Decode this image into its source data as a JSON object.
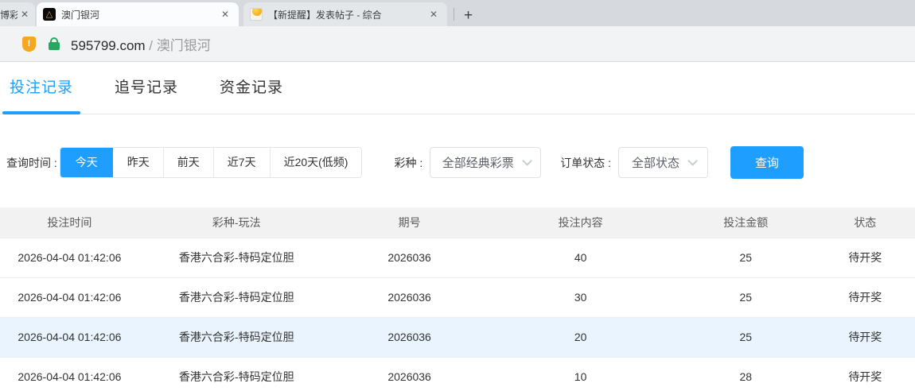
{
  "browser": {
    "tab_partial": {
      "title": "博彩"
    },
    "tab_active": {
      "title": "澳门银河"
    },
    "tab_forum": {
      "title": "【新提醒】发表帖子 - 综合"
    },
    "close_glyph": "✕",
    "new_tab_glyph": "+",
    "favicon_galaxy_glyph": "△",
    "shield_glyph": "!",
    "address": {
      "domain": "595799.com",
      "separator": " / ",
      "site": "澳门银河"
    }
  },
  "records_nav": {
    "tabs": [
      {
        "label": "投注记录",
        "active": true
      },
      {
        "label": "追号记录",
        "active": false
      },
      {
        "label": "资金记录",
        "active": false
      }
    ]
  },
  "filters": {
    "time_label": "查询时间 :",
    "time_options": [
      "今天",
      "昨天",
      "前天",
      "近7天",
      "近20天(低频)"
    ],
    "time_selected": "今天",
    "lottery_label": "彩种 :",
    "lottery_value": "全部经典彩票",
    "order_status_label": "订单状态 :",
    "order_status_value": "全部状态",
    "query_button": "查询"
  },
  "table": {
    "columns": [
      "投注时间",
      "彩种-玩法",
      "期号",
      "投注内容",
      "投注金额",
      "状态"
    ],
    "rows": [
      {
        "time": "2026-04-04 01:42:06",
        "game": "香港六合彩-特码定位胆",
        "issue": "2026036",
        "content": "40",
        "amount": "25",
        "status": "待开奖",
        "highlight": false
      },
      {
        "time": "2026-04-04 01:42:06",
        "game": "香港六合彩-特码定位胆",
        "issue": "2026036",
        "content": "30",
        "amount": "25",
        "status": "待开奖",
        "highlight": false
      },
      {
        "time": "2026-04-04 01:42:06",
        "game": "香港六合彩-特码定位胆",
        "issue": "2026036",
        "content": "20",
        "amount": "25",
        "status": "待开奖",
        "highlight": true
      },
      {
        "time": "2026-04-04 01:42:06",
        "game": "香港六合彩-特码定位胆",
        "issue": "2026036",
        "content": "10",
        "amount": "28",
        "status": "待开奖",
        "highlight": false
      }
    ]
  },
  "colors": {
    "accent": "#1e9fff",
    "row_highlight": "#e9f4fe",
    "shield_orange": "#f5a623",
    "lock_green": "#27a860"
  }
}
